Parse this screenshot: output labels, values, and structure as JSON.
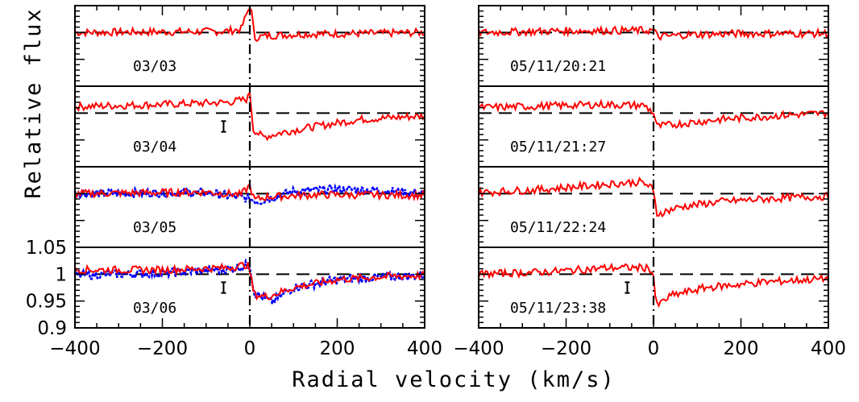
{
  "chart_data": {
    "type": "line",
    "title": "",
    "xlabel": "Radial velocity (km/s)",
    "ylabel": "Relative flux",
    "xlim": [
      -400,
      400
    ],
    "ylim": [
      0.9,
      1.05
    ],
    "x_ticks": [
      -400,
      -200,
      0,
      200,
      400
    ],
    "x_tick_labels": [
      "−400",
      "−200",
      "0",
      "200",
      "400"
    ],
    "y_ticks": [
      1.05,
      1,
      0.95,
      0.9
    ],
    "y_tick_labels": [
      "1.05",
      "1",
      "0.95",
      "0.9"
    ],
    "reference_level": 1.0,
    "marker_velocity": 0,
    "colors": {
      "observed": "#ff0000",
      "comparison": "#0000ff",
      "reference": "#000000"
    },
    "columns": [
      {
        "panels": [
          {
            "label": "03/03",
            "error_bar": false,
            "comparison": false,
            "profile": [
              [
                -400,
                1.0
              ],
              [
                -60,
                1.002
              ],
              [
                -20,
                1.006
              ],
              [
                0,
                1.05
              ],
              [
                6,
                1.03
              ],
              [
                10,
                0.99
              ],
              [
                40,
                0.994
              ],
              [
                120,
                0.997
              ],
              [
                250,
                0.998
              ],
              [
                400,
                1.0
              ]
            ]
          },
          {
            "label": "03/04",
            "error_bar": true,
            "comparison": false,
            "profile": [
              [
                -400,
                1.012
              ],
              [
                -200,
                1.016
              ],
              [
                -50,
                1.02
              ],
              [
                -5,
                1.026
              ],
              [
                0,
                1.04
              ],
              [
                8,
                0.97
              ],
              [
                30,
                0.955
              ],
              [
                80,
                0.965
              ],
              [
                150,
                0.975
              ],
              [
                250,
                0.988
              ],
              [
                400,
                0.995
              ]
            ]
          },
          {
            "label": "03/05",
            "error_bar": false,
            "comparison": true,
            "profile": [
              [
                -400,
                1.0
              ],
              [
                -100,
                1.003
              ],
              [
                -20,
                0.998
              ],
              [
                0,
                1.015
              ],
              [
                10,
                0.988
              ],
              [
                40,
                0.994
              ],
              [
                150,
                0.998
              ],
              [
                400,
                0.997
              ]
            ],
            "comparison_profile": [
              [
                -400,
                1.0
              ],
              [
                -100,
                1.002
              ],
              [
                0,
                0.99
              ],
              [
                20,
                0.985
              ],
              [
                100,
                1.004
              ],
              [
                200,
                1.008
              ],
              [
                300,
                1.006
              ],
              [
                400,
                1.0
              ]
            ]
          },
          {
            "label": "03/06",
            "error_bar": true,
            "comparison": true,
            "profile": [
              [
                -400,
                1.008
              ],
              [
                -200,
                1.008
              ],
              [
                -50,
                1.012
              ],
              [
                -5,
                1.018
              ],
              [
                0,
                1.005
              ],
              [
                10,
                0.962
              ],
              [
                40,
                0.958
              ],
              [
                100,
                0.975
              ],
              [
                200,
                0.99
              ],
              [
                300,
                0.995
              ],
              [
                400,
                0.998
              ]
            ],
            "comparison_profile": [
              [
                -400,
                0.998
              ],
              [
                -200,
                1.002
              ],
              [
                -40,
                1.01
              ],
              [
                0,
                1.018
              ],
              [
                10,
                0.965
              ],
              [
                50,
                0.948
              ],
              [
                100,
                0.975
              ],
              [
                200,
                0.99
              ],
              [
                400,
                0.998
              ]
            ]
          }
        ]
      },
      {
        "panels": [
          {
            "label": "05/11/20:21",
            "error_bar": false,
            "comparison": false,
            "profile": [
              [
                -400,
                1.0
              ],
              [
                -200,
                1.003
              ],
              [
                -10,
                1.004
              ],
              [
                0,
                1.004
              ],
              [
                10,
                0.992
              ],
              [
                80,
                0.996
              ],
              [
                200,
                0.998
              ],
              [
                400,
                0.998
              ]
            ]
          },
          {
            "label": "05/11/21:27",
            "error_bar": false,
            "comparison": false,
            "profile": [
              [
                -400,
                1.01
              ],
              [
                -250,
                1.013
              ],
              [
                -120,
                1.016
              ],
              [
                -20,
                1.014
              ],
              [
                0,
                1.0
              ],
              [
                8,
                0.975
              ],
              [
                60,
                0.98
              ],
              [
                150,
                0.988
              ],
              [
                300,
                0.996
              ],
              [
                400,
                1.0
              ]
            ]
          },
          {
            "label": "05/11/22:24",
            "error_bar": false,
            "comparison": false,
            "profile": [
              [
                -400,
                1.002
              ],
              [
                -250,
                1.008
              ],
              [
                -100,
                1.018
              ],
              [
                -30,
                1.022
              ],
              [
                -5,
                1.012
              ],
              [
                0,
                1.0
              ],
              [
                8,
                0.962
              ],
              [
                60,
                0.975
              ],
              [
                150,
                0.985
              ],
              [
                300,
                0.992
              ],
              [
                400,
                0.995
              ]
            ]
          },
          {
            "label": "05/11/23:38",
            "error_bar": true,
            "comparison": false,
            "profile": [
              [
                -400,
                1.0
              ],
              [
                -250,
                1.004
              ],
              [
                -100,
                1.012
              ],
              [
                -10,
                1.012
              ],
              [
                0,
                0.998
              ],
              [
                6,
                0.94
              ],
              [
                40,
                0.96
              ],
              [
                120,
                0.975
              ],
              [
                250,
                0.985
              ],
              [
                400,
                0.992
              ]
            ]
          }
        ]
      }
    ]
  }
}
